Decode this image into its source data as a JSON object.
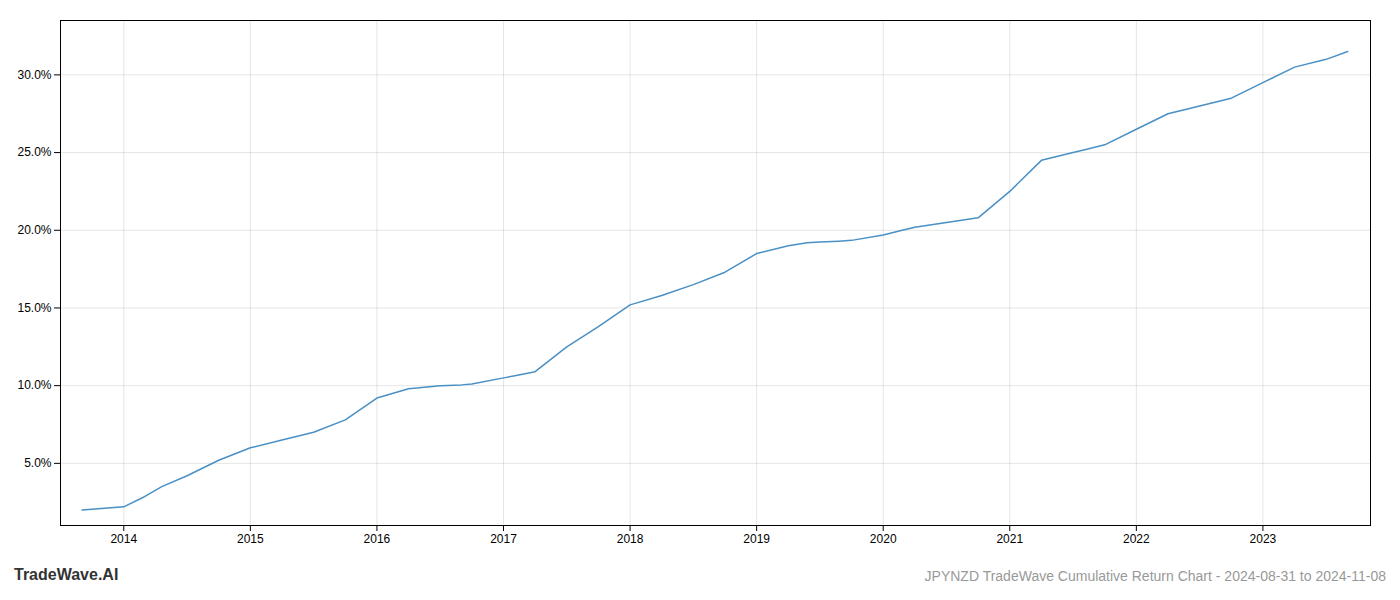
{
  "chart_data": {
    "type": "line",
    "title": "JPYNZD TradeWave Cumulative Return Chart - 2024-08-31 to 2024-11-08",
    "annotations": [
      "TradeWave.AI"
    ],
    "x": [
      2013.67,
      2014.0,
      2014.15,
      2014.3,
      2014.5,
      2014.75,
      2015.0,
      2015.25,
      2015.5,
      2015.75,
      2016.0,
      2016.25,
      2016.5,
      2016.67,
      2016.75,
      2017.0,
      2017.1,
      2017.25,
      2017.5,
      2017.75,
      2018.0,
      2018.25,
      2018.5,
      2018.75,
      2019.0,
      2019.25,
      2019.4,
      2019.5,
      2019.65,
      2019.75,
      2020.0,
      2020.15,
      2020.25,
      2020.5,
      2020.75,
      2021.0,
      2021.25,
      2021.5,
      2021.6,
      2021.75,
      2022.0,
      2022.25,
      2022.5,
      2022.75,
      2023.0,
      2023.25,
      2023.5,
      2023.67
    ],
    "values": [
      2.0,
      2.2,
      2.8,
      3.5,
      4.2,
      5.2,
      6.0,
      6.5,
      7.0,
      7.8,
      9.2,
      9.8,
      10.0,
      10.05,
      10.1,
      10.5,
      10.65,
      10.9,
      12.5,
      13.8,
      15.2,
      15.8,
      16.5,
      17.3,
      18.5,
      19.0,
      19.2,
      19.25,
      19.3,
      19.35,
      19.7,
      20.0,
      20.2,
      20.5,
      20.8,
      22.5,
      24.5,
      25.0,
      25.2,
      25.5,
      26.5,
      27.5,
      28.0,
      28.5,
      29.5,
      30.5,
      31.0,
      31.5
    ],
    "color": "#4a90c4",
    "xlim": [
      2013.5,
      2023.85
    ],
    "ylim": [
      1.0,
      33.5
    ],
    "xticks": [
      2014,
      2015,
      2016,
      2017,
      2018,
      2019,
      2020,
      2021,
      2022,
      2023
    ],
    "yticks": [
      {
        "value": 5.0,
        "label": "5.0%"
      },
      {
        "value": 10.0,
        "label": "10.0%"
      },
      {
        "value": 15.0,
        "label": "15.0%"
      },
      {
        "value": 20.0,
        "label": "20.0%"
      },
      {
        "value": 25.0,
        "label": "25.0%"
      },
      {
        "value": 30.0,
        "label": "30.0%"
      }
    ],
    "grid": true
  }
}
